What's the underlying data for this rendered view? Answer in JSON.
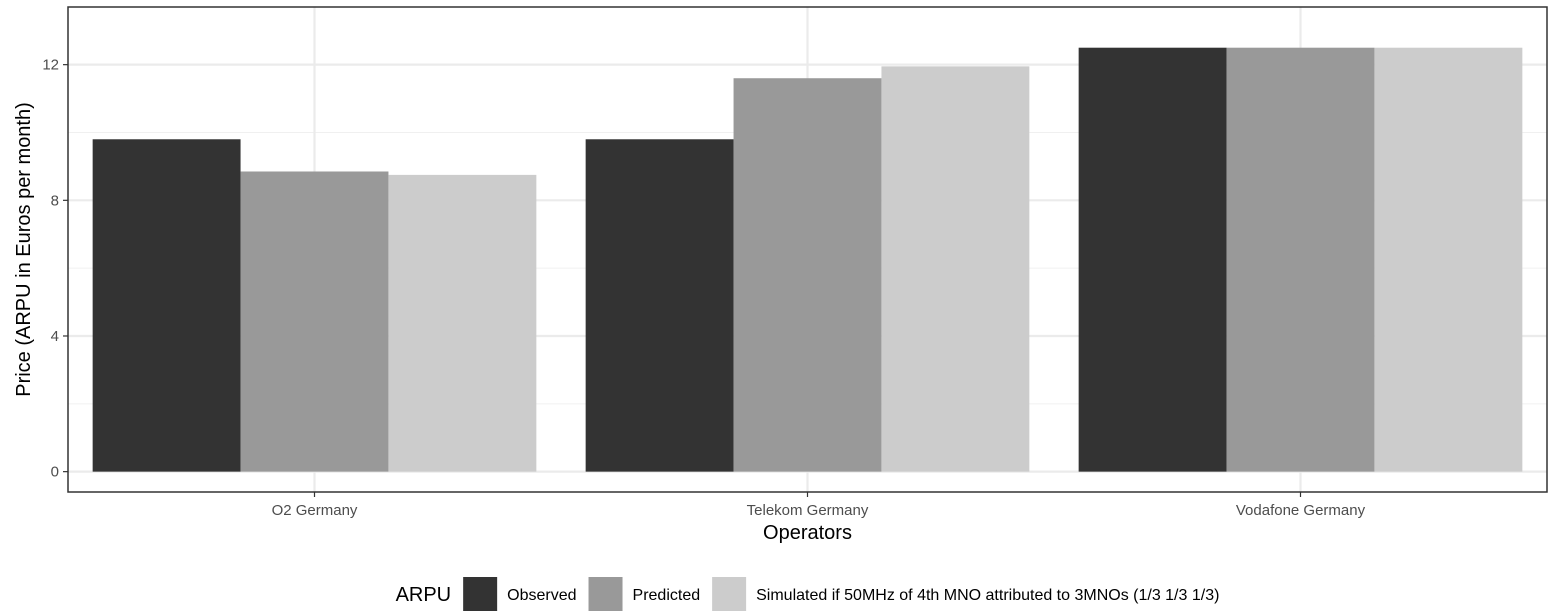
{
  "chart_data": {
    "type": "bar",
    "title": "",
    "xlabel": "Operators",
    "ylabel": "Price (ARPU in Euros per month)",
    "categories": [
      "O2 Germany",
      "Telekom Germany",
      "Vodafone Germany"
    ],
    "y_ticks": [
      "0",
      "4",
      "8",
      "12"
    ],
    "ylim": [
      -0.6,
      13.7
    ],
    "grid": true,
    "legend_title": "ARPU",
    "legend_position": "bottom",
    "series": [
      {
        "name": "Observed",
        "color": "#333333",
        "values": [
          9.8,
          9.8,
          12.5
        ]
      },
      {
        "name": "Predicted",
        "color": "#999999",
        "values": [
          8.85,
          11.6,
          12.5
        ]
      },
      {
        "name": "Simulated if 50MHz of 4th MNO attributed to 3MNOs (1/3 1/3 1/3)",
        "color": "#cccccc",
        "values": [
          8.75,
          11.95,
          12.5
        ]
      }
    ]
  }
}
